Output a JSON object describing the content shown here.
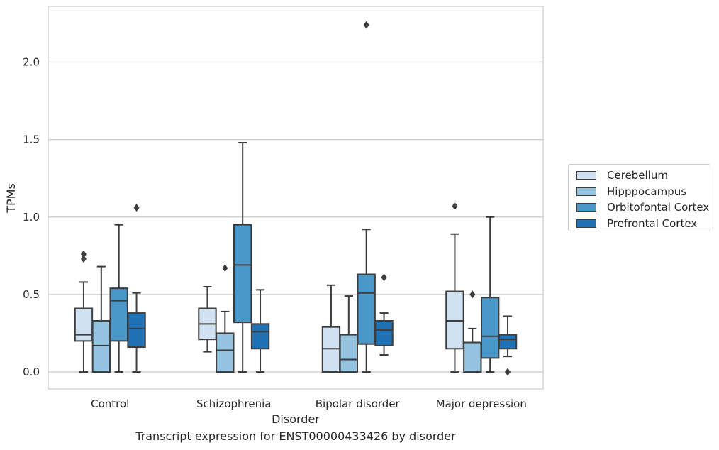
{
  "caption": "Transcript expression for ENST00000433426 by disorder",
  "chart_data": {
    "type": "box",
    "xlabel": "Disorder",
    "ylabel": "TPMs",
    "ylim": [
      -0.11,
      2.36
    ],
    "yticks": [
      0.0,
      0.5,
      1.0,
      1.5,
      2.0
    ],
    "ytick_labels": [
      "0.0",
      "0.5",
      "1.0",
      "1.5",
      "2.0"
    ],
    "grid": true,
    "legend_position": "right, outside",
    "categories": [
      "Control",
      "Schizophrenia",
      "Bipolar disorder",
      "Major depression"
    ],
    "series": [
      {
        "name": "Cerebellum",
        "color": "#d0e1f2",
        "boxes": [
          {
            "whisker_low": 0.0,
            "q1": 0.2,
            "median": 0.24,
            "q3": 0.41,
            "whisker_high": 0.58,
            "outliers": [
              0.73,
              0.76
            ]
          },
          {
            "whisker_low": 0.13,
            "q1": 0.21,
            "median": 0.31,
            "q3": 0.41,
            "whisker_high": 0.55,
            "outliers": []
          },
          {
            "whisker_low": 0.0,
            "q1": 0.0,
            "median": 0.15,
            "q3": 0.29,
            "whisker_high": 0.56,
            "outliers": []
          },
          {
            "whisker_low": 0.0,
            "q1": 0.15,
            "median": 0.33,
            "q3": 0.52,
            "whisker_high": 0.89,
            "outliers": [
              1.07
            ]
          }
        ]
      },
      {
        "name": "Hipppocampus",
        "color": "#94c4df",
        "boxes": [
          {
            "whisker_low": 0.0,
            "q1": 0.0,
            "median": 0.17,
            "q3": 0.33,
            "whisker_high": 0.68,
            "outliers": []
          },
          {
            "whisker_low": 0.0,
            "q1": 0.0,
            "median": 0.14,
            "q3": 0.25,
            "whisker_high": 0.39,
            "outliers": [
              0.67
            ]
          },
          {
            "whisker_low": 0.0,
            "q1": 0.0,
            "median": 0.08,
            "q3": 0.24,
            "whisker_high": 0.49,
            "outliers": []
          },
          {
            "whisker_low": 0.0,
            "q1": 0.0,
            "median": 0.0,
            "q3": 0.19,
            "whisker_high": 0.28,
            "outliers": [
              0.5
            ]
          }
        ]
      },
      {
        "name": "Orbitofontal Cortex",
        "color": "#4a98c9",
        "boxes": [
          {
            "whisker_low": 0.0,
            "q1": 0.2,
            "median": 0.46,
            "q3": 0.54,
            "whisker_high": 0.95,
            "outliers": []
          },
          {
            "whisker_low": 0.0,
            "q1": 0.32,
            "median": 0.69,
            "q3": 0.95,
            "whisker_high": 1.48,
            "outliers": []
          },
          {
            "whisker_low": 0.0,
            "q1": 0.18,
            "median": 0.51,
            "q3": 0.63,
            "whisker_high": 0.92,
            "outliers": [
              2.24
            ]
          },
          {
            "whisker_low": 0.0,
            "q1": 0.09,
            "median": 0.23,
            "q3": 0.48,
            "whisker_high": 1.0,
            "outliers": []
          }
        ]
      },
      {
        "name": "Prefrontal Cortex",
        "color": "#2171b5",
        "boxes": [
          {
            "whisker_low": 0.0,
            "q1": 0.16,
            "median": 0.28,
            "q3": 0.38,
            "whisker_high": 0.51,
            "outliers": [
              1.06
            ]
          },
          {
            "whisker_low": 0.0,
            "q1": 0.15,
            "median": 0.26,
            "q3": 0.31,
            "whisker_high": 0.53,
            "outliers": []
          },
          {
            "whisker_low": 0.11,
            "q1": 0.17,
            "median": 0.27,
            "q3": 0.33,
            "whisker_high": 0.38,
            "outliers": [
              0.61
            ]
          },
          {
            "whisker_low": 0.1,
            "q1": 0.15,
            "median": 0.21,
            "q3": 0.24,
            "whisker_high": 0.36,
            "outliers": [
              0.0
            ]
          }
        ]
      }
    ]
  }
}
